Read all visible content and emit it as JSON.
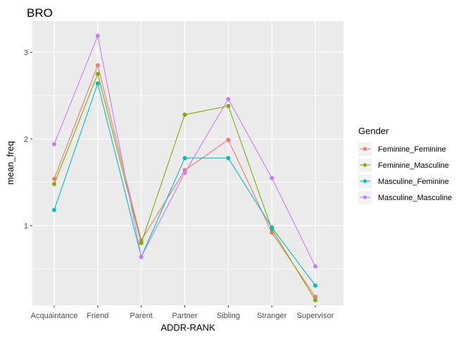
{
  "chart_data": {
    "type": "line",
    "title": "BRO",
    "xlabel": "ADDR-RANK",
    "ylabel": "mean_freq",
    "categories": [
      "Acquaintance",
      "Friend",
      "Parent",
      "Partner",
      "Sibling",
      "Stranger",
      "Supervisor"
    ],
    "ylim": [
      0.08,
      3.36
    ],
    "yticks": [
      1,
      2,
      3
    ],
    "grid": true,
    "legend": {
      "title": "Gender",
      "position": "right"
    },
    "series": [
      {
        "name": "Feminine_Feminine",
        "color": "#F8766D",
        "values": [
          1.54,
          2.85,
          0.83,
          1.64,
          1.99,
          0.92,
          0.18
        ]
      },
      {
        "name": "Feminine_Masculine",
        "color": "#7CAE00",
        "values": [
          1.48,
          2.75,
          0.8,
          2.28,
          2.38,
          0.96,
          0.14
        ]
      },
      {
        "name": "Masculine_Feminine",
        "color": "#00BFC4",
        "values": [
          1.18,
          2.64,
          0.64,
          1.78,
          1.78,
          0.98,
          0.31
        ]
      },
      {
        "name": "Masculine_Masculine",
        "color": "#C77CFF",
        "values": [
          1.94,
          3.19,
          0.64,
          1.61,
          2.46,
          1.55,
          0.53
        ]
      }
    ]
  }
}
